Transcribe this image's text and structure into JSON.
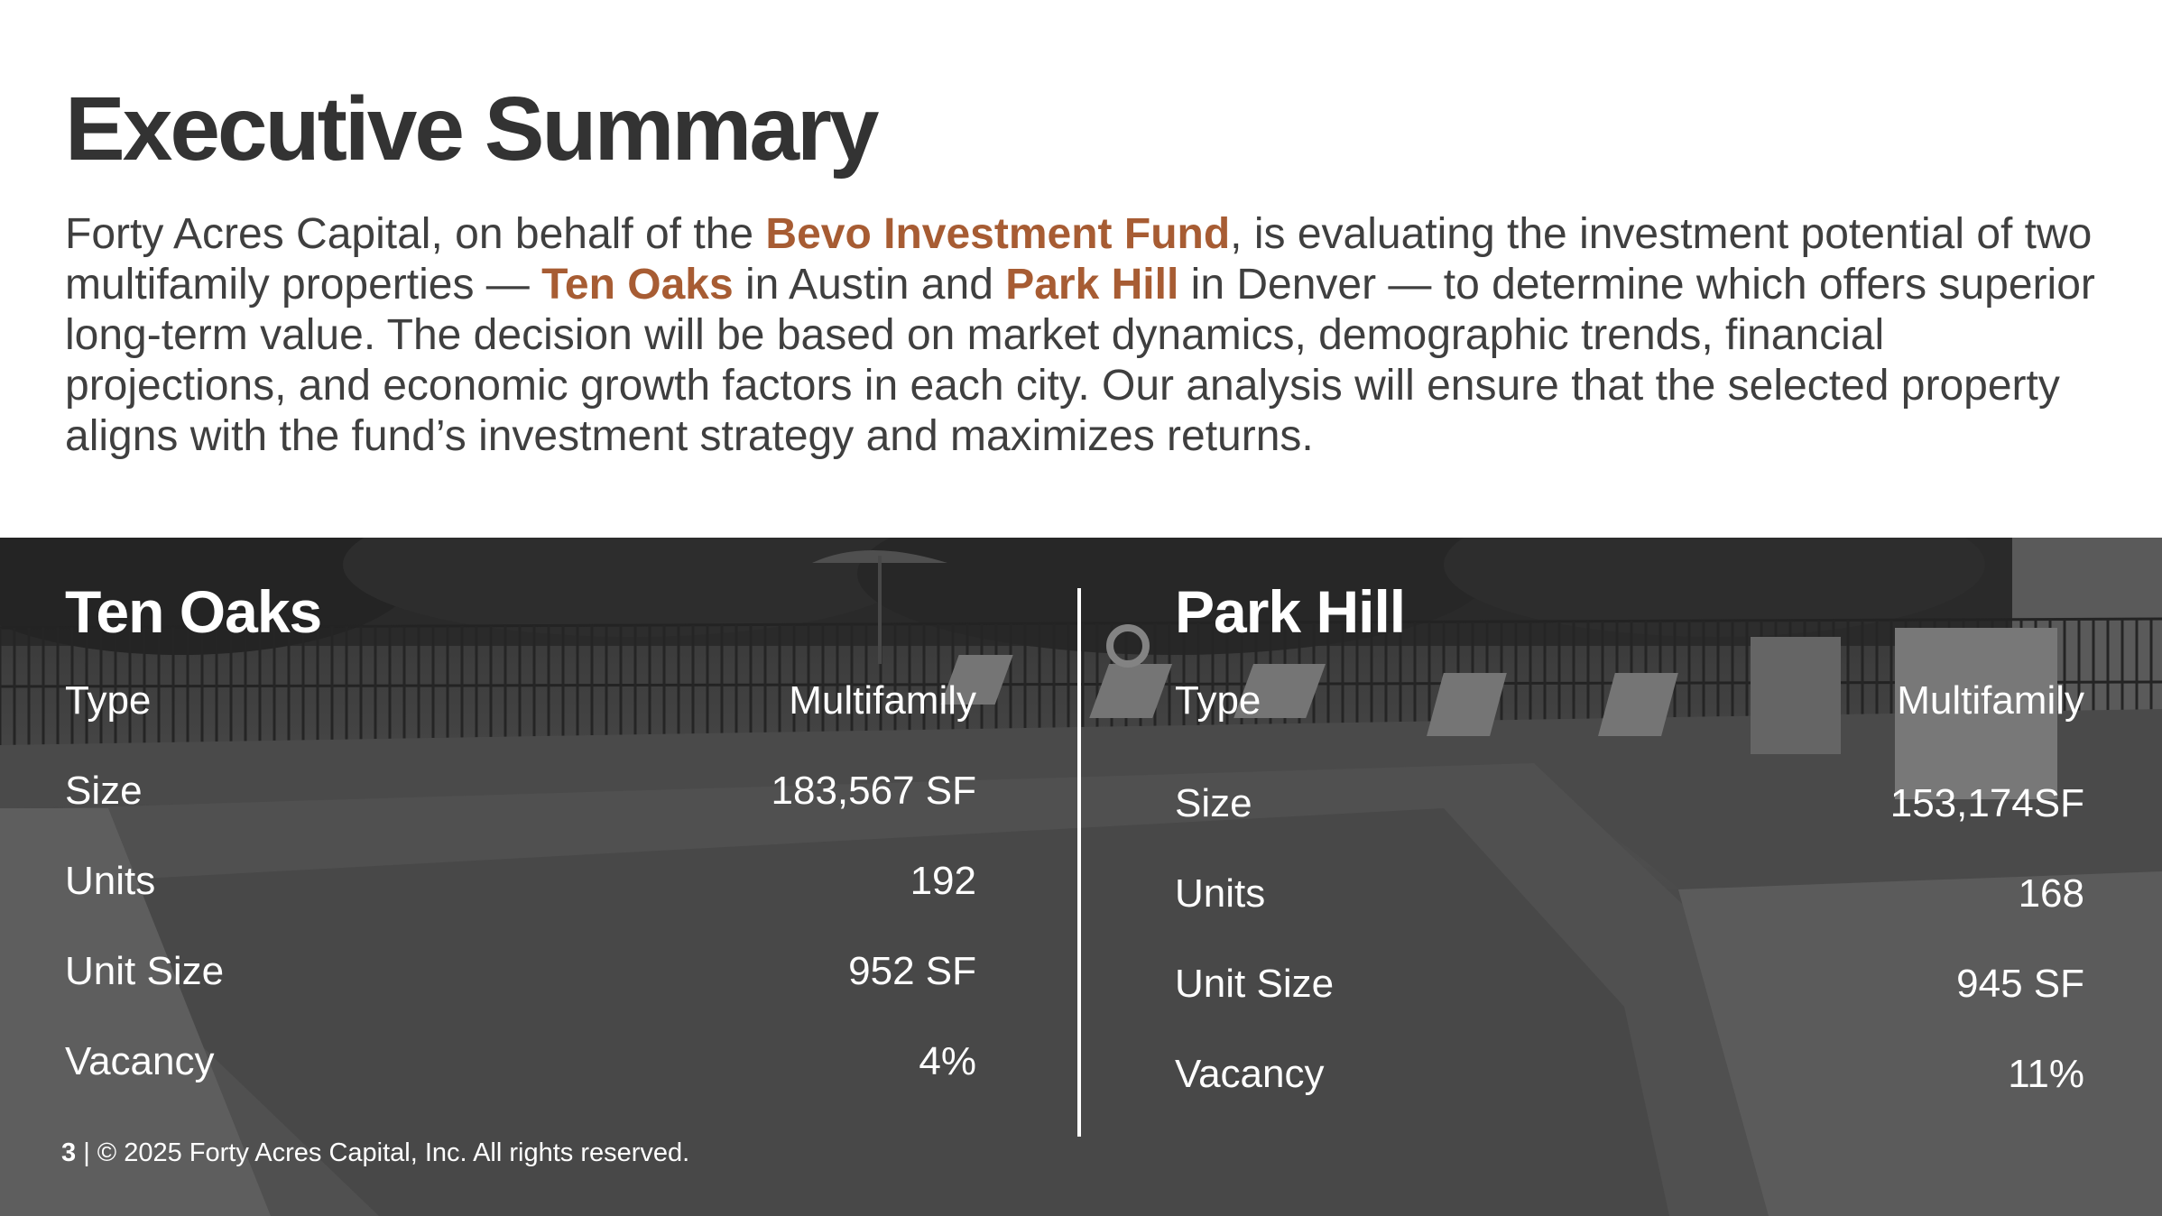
{
  "title": "Executive Summary",
  "intro": {
    "p1": "Forty Acres Capital, on behalf of the ",
    "fund": "Bevo Investment Fund",
    "p2": ", is evaluating the investment potential of two multifamily properties — ",
    "prop1": "Ten Oaks",
    "p3": " in Austin and ",
    "prop2": "Park Hill",
    "p4": " in Denver — to determine which offers superior long-term value. The decision will be based on market dynamics, demographic trends, financial projections, and economic growth factors in each city. Our analysis will ensure that the selected property aligns with the fund’s investment strategy and maximizes returns."
  },
  "properties": [
    {
      "name": "Ten Oaks",
      "rows": [
        {
          "label": "Type",
          "value": "Multifamily"
        },
        {
          "label": "Size",
          "value": "183,567 SF"
        },
        {
          "label": "Units",
          "value": "192"
        },
        {
          "label": "Unit Size",
          "value": "952 SF"
        },
        {
          "label": "Vacancy",
          "value": "4%"
        }
      ]
    },
    {
      "name": "Park Hill",
      "rows": [
        {
          "label": "Type",
          "value": "Multifamily"
        },
        {
          "label": "Size",
          "value": "153,174SF"
        },
        {
          "label": "Units",
          "value": "168"
        },
        {
          "label": "Unit Size",
          "value": "945 SF"
        },
        {
          "label": "Vacancy",
          "value": "11%"
        }
      ]
    }
  ],
  "footer": {
    "page": "3",
    "text": " | © 2025 Forty Acres Capital, Inc. All rights reserved."
  },
  "colors": {
    "accent": "#a75c33",
    "title": "#333333",
    "body": "#3f3f3f",
    "overlay_text": "#ffffff"
  }
}
